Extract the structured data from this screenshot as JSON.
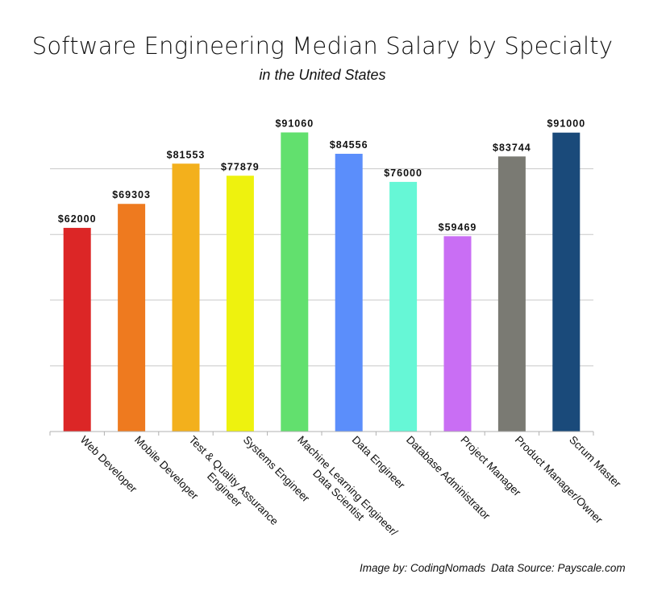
{
  "title": "Software Engineering Median Salary by Specialty",
  "subtitle": "in the United States",
  "credits": {
    "image_by": "Image by: CodingNomads",
    "data_source": "Data Source: Payscale.com"
  },
  "chart_data": {
    "type": "bar",
    "title": "Software Engineering Median Salary by Specialty",
    "subtitle": "in the United States",
    "xlabel": "",
    "ylabel": "",
    "ylim": [
      0,
      100000
    ],
    "grid": true,
    "gridline_values": [
      20000,
      40000,
      60000,
      80000
    ],
    "y_tick_labels_shown": false,
    "legend": "none",
    "categories": [
      [
        "Web Developer"
      ],
      [
        "Mobile Developer"
      ],
      [
        "Test & Quality Assurance",
        "Engineer"
      ],
      [
        "Systems Engineer"
      ],
      [
        "Machine Learning Engineer/",
        "Data Scientist"
      ],
      [
        "Data Engineer"
      ],
      [
        "Database Administrator"
      ],
      [
        "Project Manager"
      ],
      [
        "Product Manager/Owner"
      ],
      [
        "Scrum Master"
      ]
    ],
    "values": [
      62000,
      69303,
      81553,
      77879,
      91060,
      84556,
      76000,
      59469,
      83744,
      91000
    ],
    "data_labels": [
      "$62000",
      "$69303",
      "$81553",
      "$77879",
      "$91060",
      "$84556",
      "$76000",
      "$59469",
      "$83744",
      "$91000"
    ],
    "colors": [
      "#dc2626",
      "#ee7a1f",
      "#f3b01c",
      "#eef20e",
      "#62e06e",
      "#5b8efb",
      "#66f7d6",
      "#c96ef4",
      "#7a7a73",
      "#1a4a7a"
    ]
  }
}
